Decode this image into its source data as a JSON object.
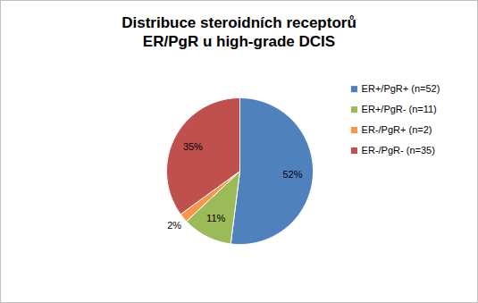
{
  "chart_data": {
    "type": "pie",
    "title": "Distribuce steroidních receptorů ER/PgR u high-grade DCIS",
    "categories": [
      "ER+/PgR+ (n=52)",
      "ER+/PgR- (n=11)",
      "ER-/PgR+ (n=2)",
      "ER-/PgR- (n=35)"
    ],
    "values": [
      52,
      11,
      2,
      35
    ],
    "value_labels": [
      "52%",
      "11%",
      "2%",
      "35%"
    ],
    "colors": [
      "#4f81bd",
      "#9bbb59",
      "#f79646",
      "#c0504d"
    ],
    "data_labels": true,
    "legend": "right"
  }
}
